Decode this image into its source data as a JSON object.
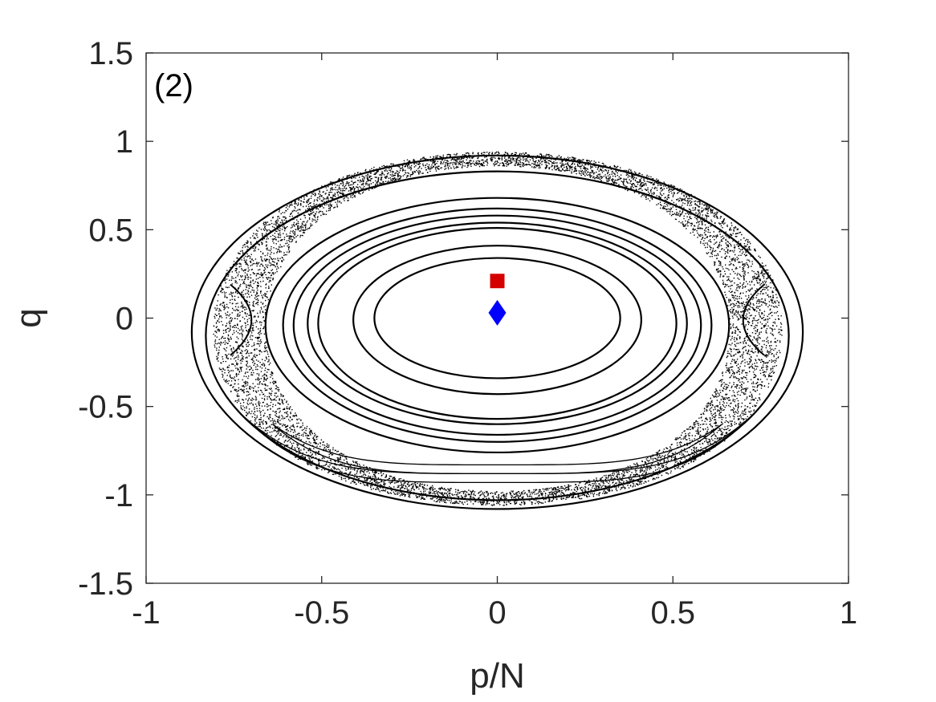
{
  "chart_data": {
    "type": "scatter",
    "title": "",
    "panel_label": "(2)",
    "xlabel": "p/N",
    "ylabel": "q",
    "xlim": [
      -1,
      1
    ],
    "ylim": [
      -1.5,
      1.5
    ],
    "x_ticks": [
      -1,
      -0.5,
      0,
      0.5,
      1
    ],
    "y_ticks": [
      -1.5,
      -1,
      -0.5,
      0,
      0.5,
      1,
      1.5
    ],
    "x_tick_labels": [
      "-1",
      "-0.5",
      "0",
      "0.5",
      "1"
    ],
    "y_tick_labels": [
      "-1.5",
      "-1",
      "-0.5",
      "0",
      "0.5",
      "1",
      "1.5"
    ],
    "grid": false,
    "box": true,
    "colors": {
      "axes": "#262626",
      "orbits": "#000000",
      "square": "#d40000",
      "diamond": "#0000ff"
    },
    "markers": [
      {
        "shape": "square",
        "x": 0.0,
        "y": 0.21,
        "color": "#d40000"
      },
      {
        "shape": "diamond",
        "x": 0.0,
        "y": 0.03,
        "color": "#0000ff"
      }
    ],
    "regular_orbits": [
      {
        "cx": 0.0,
        "cy": 0.0,
        "rx": 0.35,
        "ry": 0.34
      },
      {
        "cx": 0.0,
        "cy": -0.01,
        "rx": 0.41,
        "ry": 0.42
      },
      {
        "cx": 0.0,
        "cy": -0.03,
        "rx": 0.51,
        "ry": 0.54
      },
      {
        "cx": 0.0,
        "cy": -0.03,
        "rx": 0.54,
        "ry": 0.57
      },
      {
        "cx": 0.0,
        "cy": -0.04,
        "rx": 0.58,
        "ry": 0.62
      },
      {
        "cx": 0.0,
        "cy": -0.04,
        "rx": 0.61,
        "ry": 0.66
      },
      {
        "cx": 0.0,
        "cy": -0.04,
        "rx": 0.66,
        "ry": 0.72
      },
      {
        "cx": 0.0,
        "cy": -0.1,
        "rx": 0.83,
        "ry": 0.93
      },
      {
        "cx": 0.0,
        "cy": -0.08,
        "rx": 0.87,
        "ry": 1.0
      }
    ],
    "chaotic_layers": [
      {
        "cx": 0.0,
        "cy": -0.06,
        "rx0": 0.66,
        "rx1": 0.81,
        "ry0": 0.92,
        "ry1": 1.0,
        "n": 9000
      }
    ],
    "resonance_bands": [
      {
        "top": -0.6,
        "bottom": -0.88,
        "half_width": 0.64,
        "width": 1.3
      },
      {
        "top": -0.56,
        "bottom": -0.93,
        "half_width": 0.72,
        "width": 1.3
      }
    ]
  }
}
